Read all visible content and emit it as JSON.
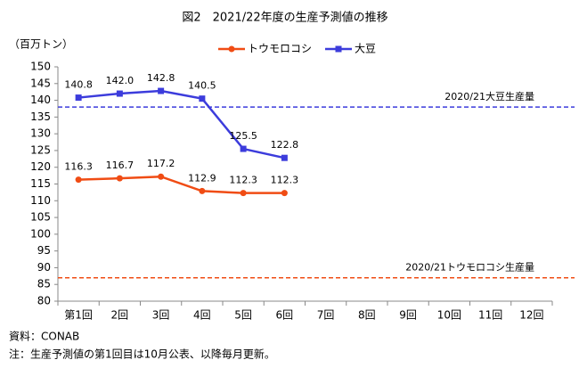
{
  "chart_data": {
    "type": "line",
    "title": "図2　2021/22年度の生産予測値の推移",
    "y_unit_label": "（百万トン）",
    "categories": [
      "第1回",
      "2回",
      "3回",
      "4回",
      "5回",
      "6回",
      "7回",
      "8回",
      "9回",
      "10回",
      "11回",
      "12回"
    ],
    "series": [
      {
        "name": "トウモロコシ",
        "color": "#f04c14",
        "marker": "circle",
        "values": [
          116.3,
          116.7,
          117.2,
          112.9,
          112.3,
          112.3,
          null,
          null,
          null,
          null,
          null,
          null
        ],
        "value_labels": [
          "116.3",
          "116.7",
          "117.2",
          "112.9",
          "112.3",
          "112.3",
          null,
          null,
          null,
          null,
          null,
          null
        ]
      },
      {
        "name": "大豆",
        "color": "#3c3cdc",
        "marker": "square",
        "values": [
          140.8,
          142.0,
          142.8,
          140.5,
          125.5,
          122.8,
          null,
          null,
          null,
          null,
          null,
          null
        ],
        "value_labels": [
          "140.8",
          "142.0",
          "142.8",
          "140.5",
          "125.5",
          "122.8",
          null,
          null,
          null,
          null,
          null,
          null
        ]
      }
    ],
    "reference_lines": [
      {
        "label": "2020/21大豆生産量",
        "value": 138,
        "color": "#3c3cdc"
      },
      {
        "label": "2020/21トウモロコシ生産量",
        "value": 87,
        "color": "#f04c14"
      }
    ],
    "ylim": [
      80,
      150
    ],
    "yticks": [
      80,
      85,
      90,
      95,
      100,
      105,
      110,
      115,
      120,
      125,
      130,
      135,
      140,
      145,
      150
    ],
    "legend": "top",
    "notes": [
      "資料：CONAB",
      "注：生産予測値の第1回目は10月公表、以降毎月更新。"
    ]
  }
}
